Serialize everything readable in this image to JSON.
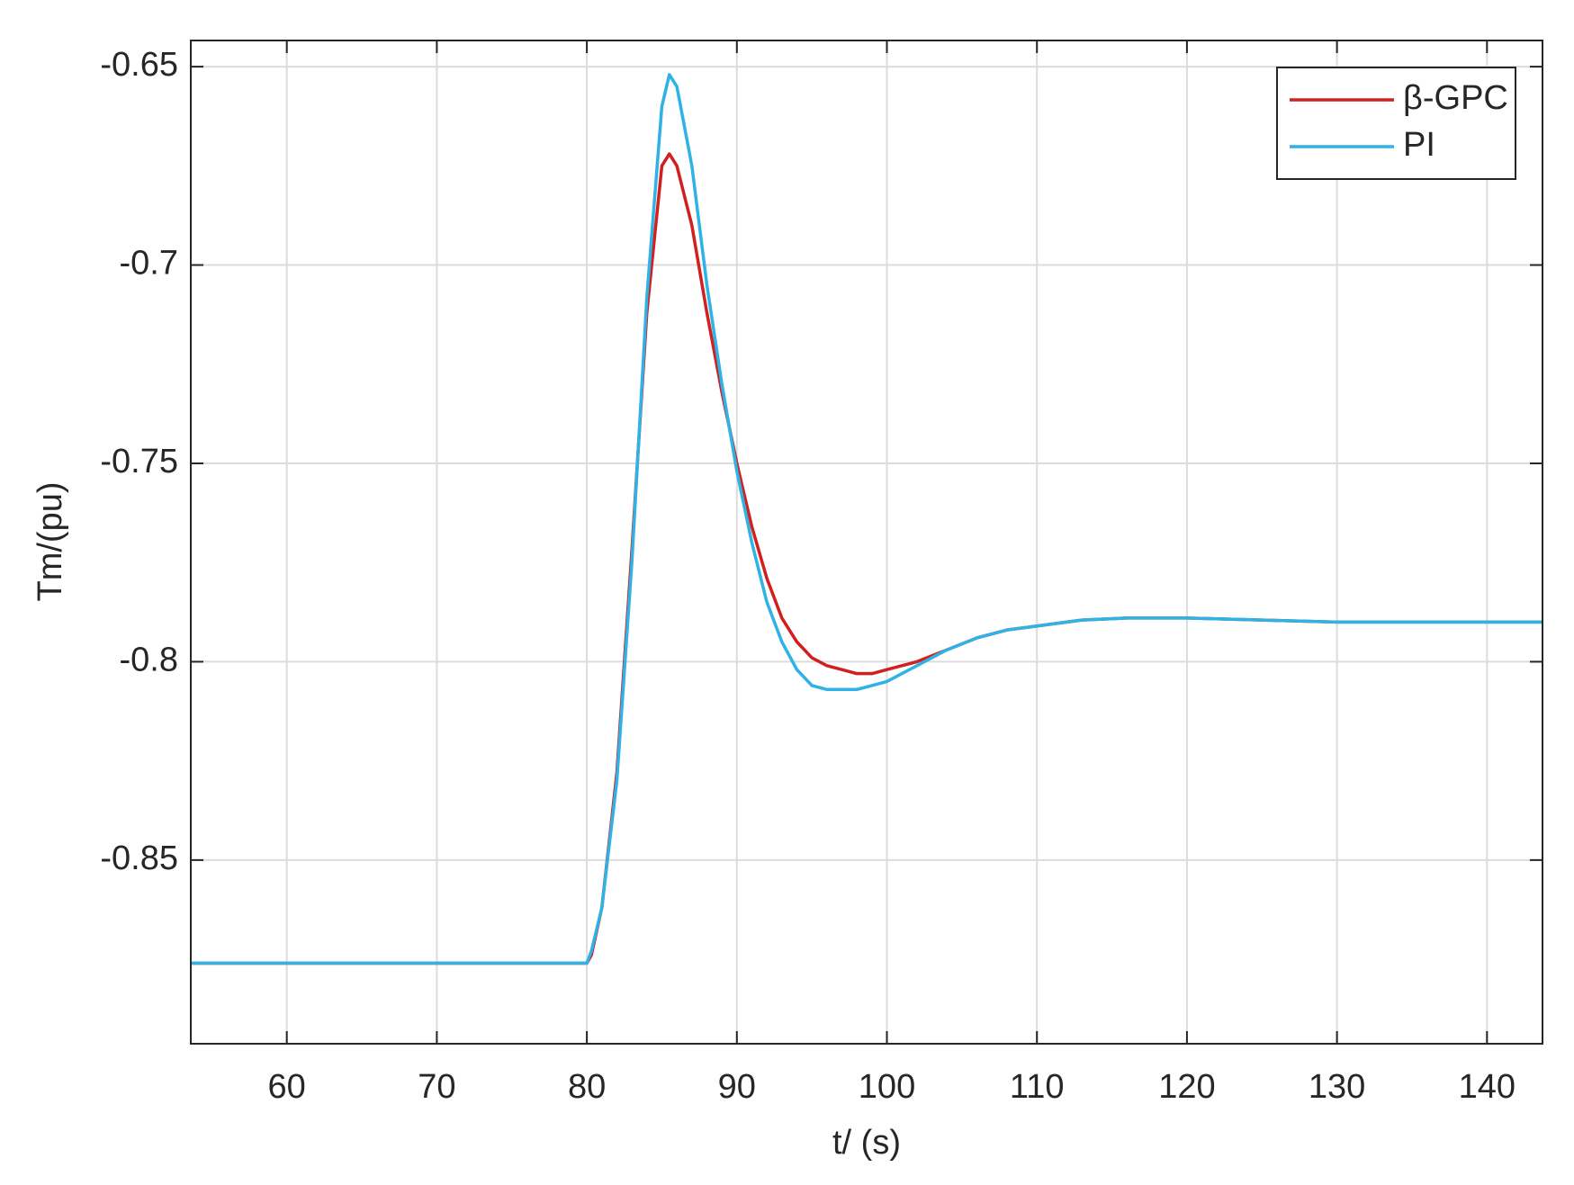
{
  "chart_data": {
    "type": "line",
    "xlabel": "t/ (s)",
    "ylabel": "Tm/(pu)",
    "x": [
      53.6,
      80,
      80.3,
      81,
      82,
      83,
      84,
      85,
      85.5,
      86,
      87,
      88,
      89,
      90,
      91,
      92,
      93,
      94,
      95,
      96,
      97,
      98,
      99,
      100,
      102,
      104,
      106,
      108,
      110,
      113,
      116,
      120,
      125,
      130,
      143.7
    ],
    "series": [
      {
        "name": "β-GPC",
        "color": "#d21f1f",
        "values": [
          -0.876,
          -0.876,
          -0.874,
          -0.862,
          -0.828,
          -0.772,
          -0.712,
          -0.675,
          -0.672,
          -0.675,
          -0.69,
          -0.712,
          -0.732,
          -0.75,
          -0.766,
          -0.779,
          -0.789,
          -0.795,
          -0.799,
          -0.801,
          -0.802,
          -0.803,
          -0.803,
          -0.802,
          -0.8,
          -0.797,
          -0.794,
          -0.792,
          -0.791,
          -0.7895,
          -0.789,
          -0.789,
          -0.7895,
          -0.79,
          -0.79
        ]
      },
      {
        "name": "PI",
        "color": "#2fb2e6",
        "values": [
          -0.876,
          -0.876,
          -0.873,
          -0.862,
          -0.83,
          -0.775,
          -0.708,
          -0.66,
          -0.652,
          -0.655,
          -0.675,
          -0.705,
          -0.73,
          -0.752,
          -0.77,
          -0.785,
          -0.795,
          -0.802,
          -0.806,
          -0.807,
          -0.807,
          -0.807,
          -0.806,
          -0.805,
          -0.801,
          -0.797,
          -0.794,
          -0.792,
          -0.791,
          -0.7895,
          -0.789,
          -0.789,
          -0.7895,
          -0.79,
          -0.79
        ]
      }
    ],
    "xlim": [
      53.6,
      143.7
    ],
    "xticks": [
      60,
      70,
      80,
      90,
      100,
      110,
      120,
      130,
      140
    ],
    "ylim": [
      -0.8963,
      -0.6434
    ],
    "yticks": [
      -0.85,
      -0.8,
      -0.75,
      -0.7,
      -0.65
    ],
    "grid": true,
    "legend": "upper right"
  }
}
